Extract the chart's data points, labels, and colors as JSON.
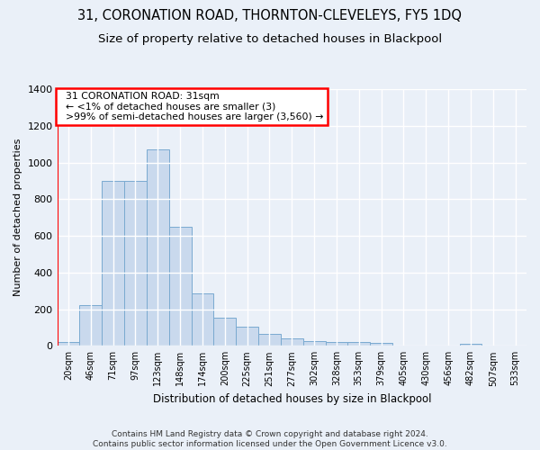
{
  "title1": "31, CORONATION ROAD, THORNTON-CLEVELEYS, FY5 1DQ",
  "title2": "Size of property relative to detached houses in Blackpool",
  "xlabel": "Distribution of detached houses by size in Blackpool",
  "ylabel": "Number of detached properties",
  "footnote": "Contains HM Land Registry data © Crown copyright and database right 2024.\nContains public sector information licensed under the Open Government Licence v3.0.",
  "bar_labels": [
    "20sqm",
    "46sqm",
    "71sqm",
    "97sqm",
    "123sqm",
    "148sqm",
    "174sqm",
    "200sqm",
    "225sqm",
    "251sqm",
    "277sqm",
    "302sqm",
    "328sqm",
    "353sqm",
    "379sqm",
    "405sqm",
    "430sqm",
    "456sqm",
    "482sqm",
    "507sqm",
    "533sqm"
  ],
  "bar_values": [
    20,
    220,
    900,
    900,
    1070,
    650,
    285,
    155,
    105,
    65,
    40,
    25,
    20,
    20,
    15,
    0,
    0,
    0,
    10,
    0,
    0
  ],
  "bar_color": "#c9d9ed",
  "bar_edge_color": "#7aaad0",
  "annotation_text": "  31 CORONATION ROAD: 31sqm\n  ← <1% of detached houses are smaller (3)\n  >99% of semi-detached houses are larger (3,560) →",
  "annotation_box_color": "white",
  "annotation_box_edge_color": "red",
  "vline_color": "red",
  "ylim": [
    0,
    1400
  ],
  "yticks": [
    0,
    200,
    400,
    600,
    800,
    1000,
    1200,
    1400
  ],
  "bg_color": "#eaf0f8",
  "grid_color": "white",
  "title_fontsize": 10.5,
  "subtitle_fontsize": 9.5,
  "footnote_fontsize": 6.5
}
